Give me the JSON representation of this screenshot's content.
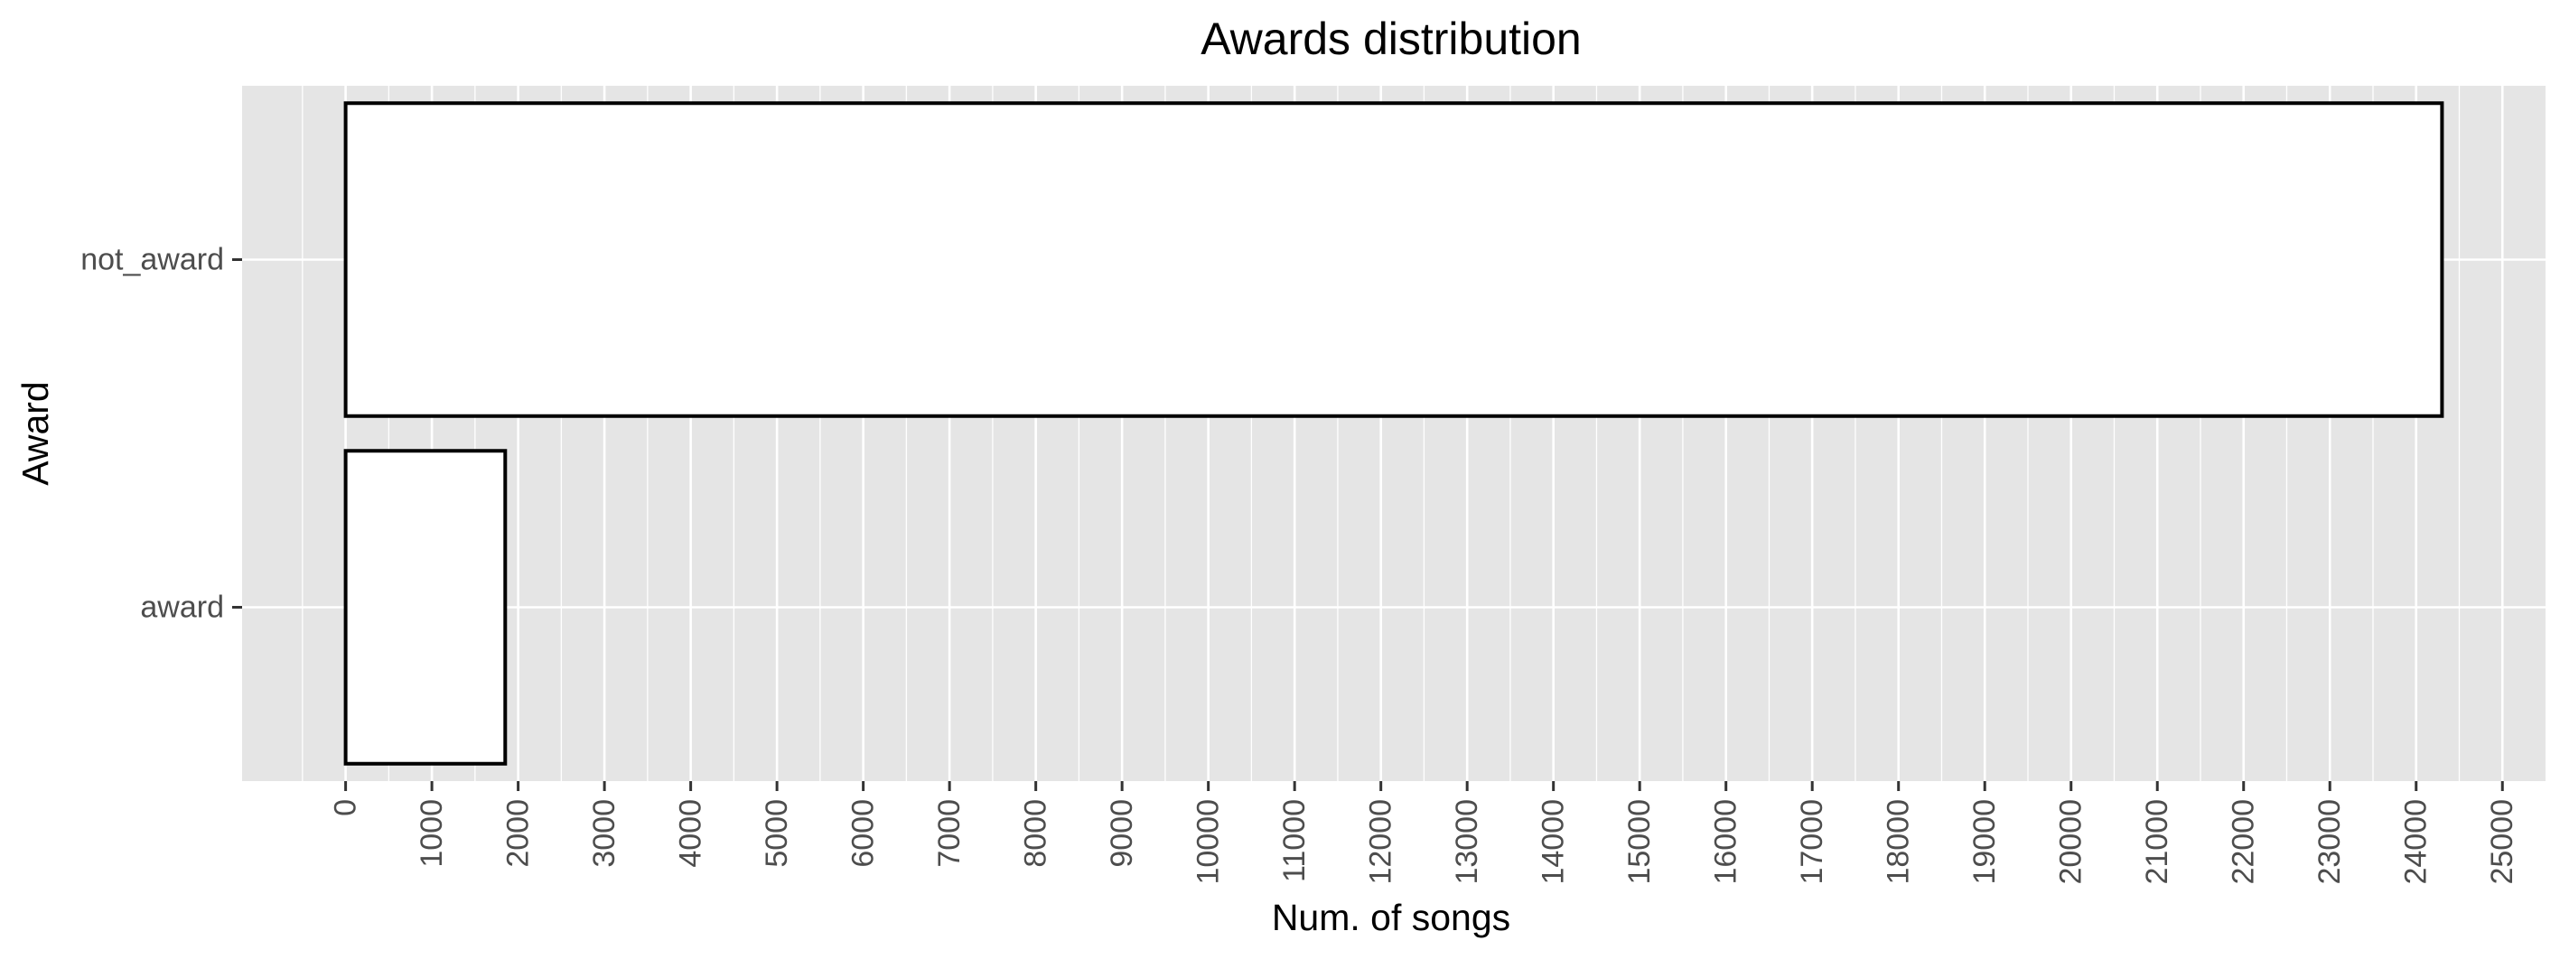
{
  "chart_data": {
    "type": "bar",
    "orientation": "horizontal",
    "title": "Awards distribution",
    "xlabel": "Num. of songs",
    "ylabel": "Award",
    "categories": [
      "award",
      "not_award"
    ],
    "values": [
      1850,
      24300
    ],
    "xlim": [
      -1200,
      25500
    ],
    "xticks": [
      0,
      1000,
      2000,
      3000,
      4000,
      5000,
      6000,
      7000,
      8000,
      9000,
      10000,
      11000,
      12000,
      13000,
      14000,
      15000,
      16000,
      17000,
      18000,
      19000,
      20000,
      21000,
      22000,
      23000,
      24000,
      25000
    ],
    "grid": true,
    "legend": "none",
    "colors": {
      "panel": "#e5e5e5",
      "grid_major": "#ffffff",
      "bar_fill": "#ffffff",
      "bar_stroke": "#000000",
      "tick_text": "#4d4d4d"
    }
  }
}
